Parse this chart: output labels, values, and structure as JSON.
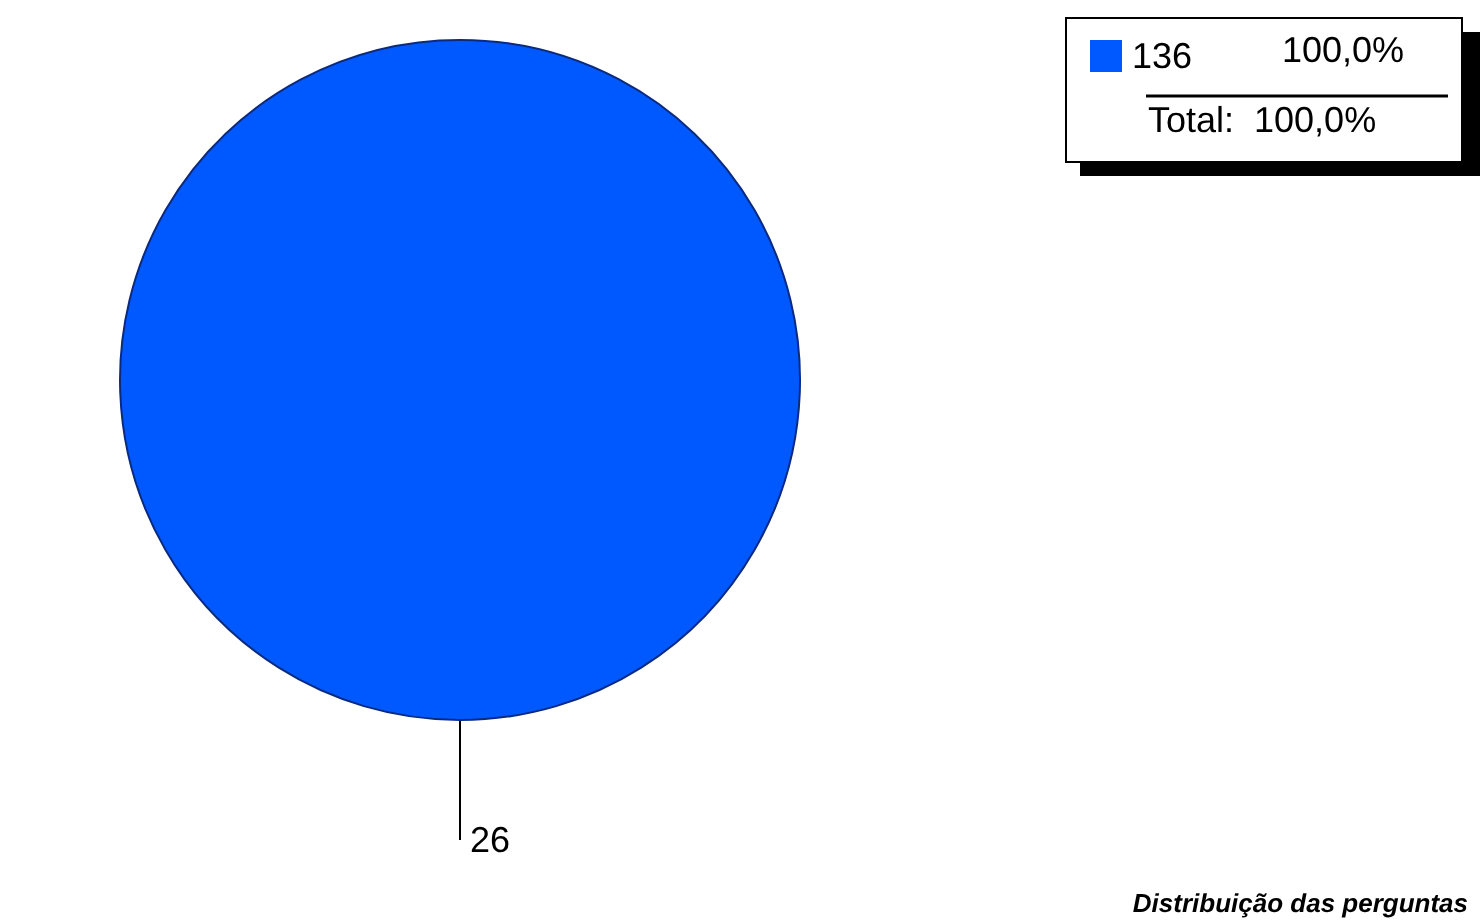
{
  "chart_data": {
    "type": "pie",
    "categories": [
      "136"
    ],
    "values": [
      26
    ],
    "colors": [
      "#0059ff"
    ],
    "data_labels": true,
    "legend": "top right",
    "annotations": [
      "100,0%",
      "Total:  100,0%",
      "Distribuição das perguntas"
    ]
  }
}
